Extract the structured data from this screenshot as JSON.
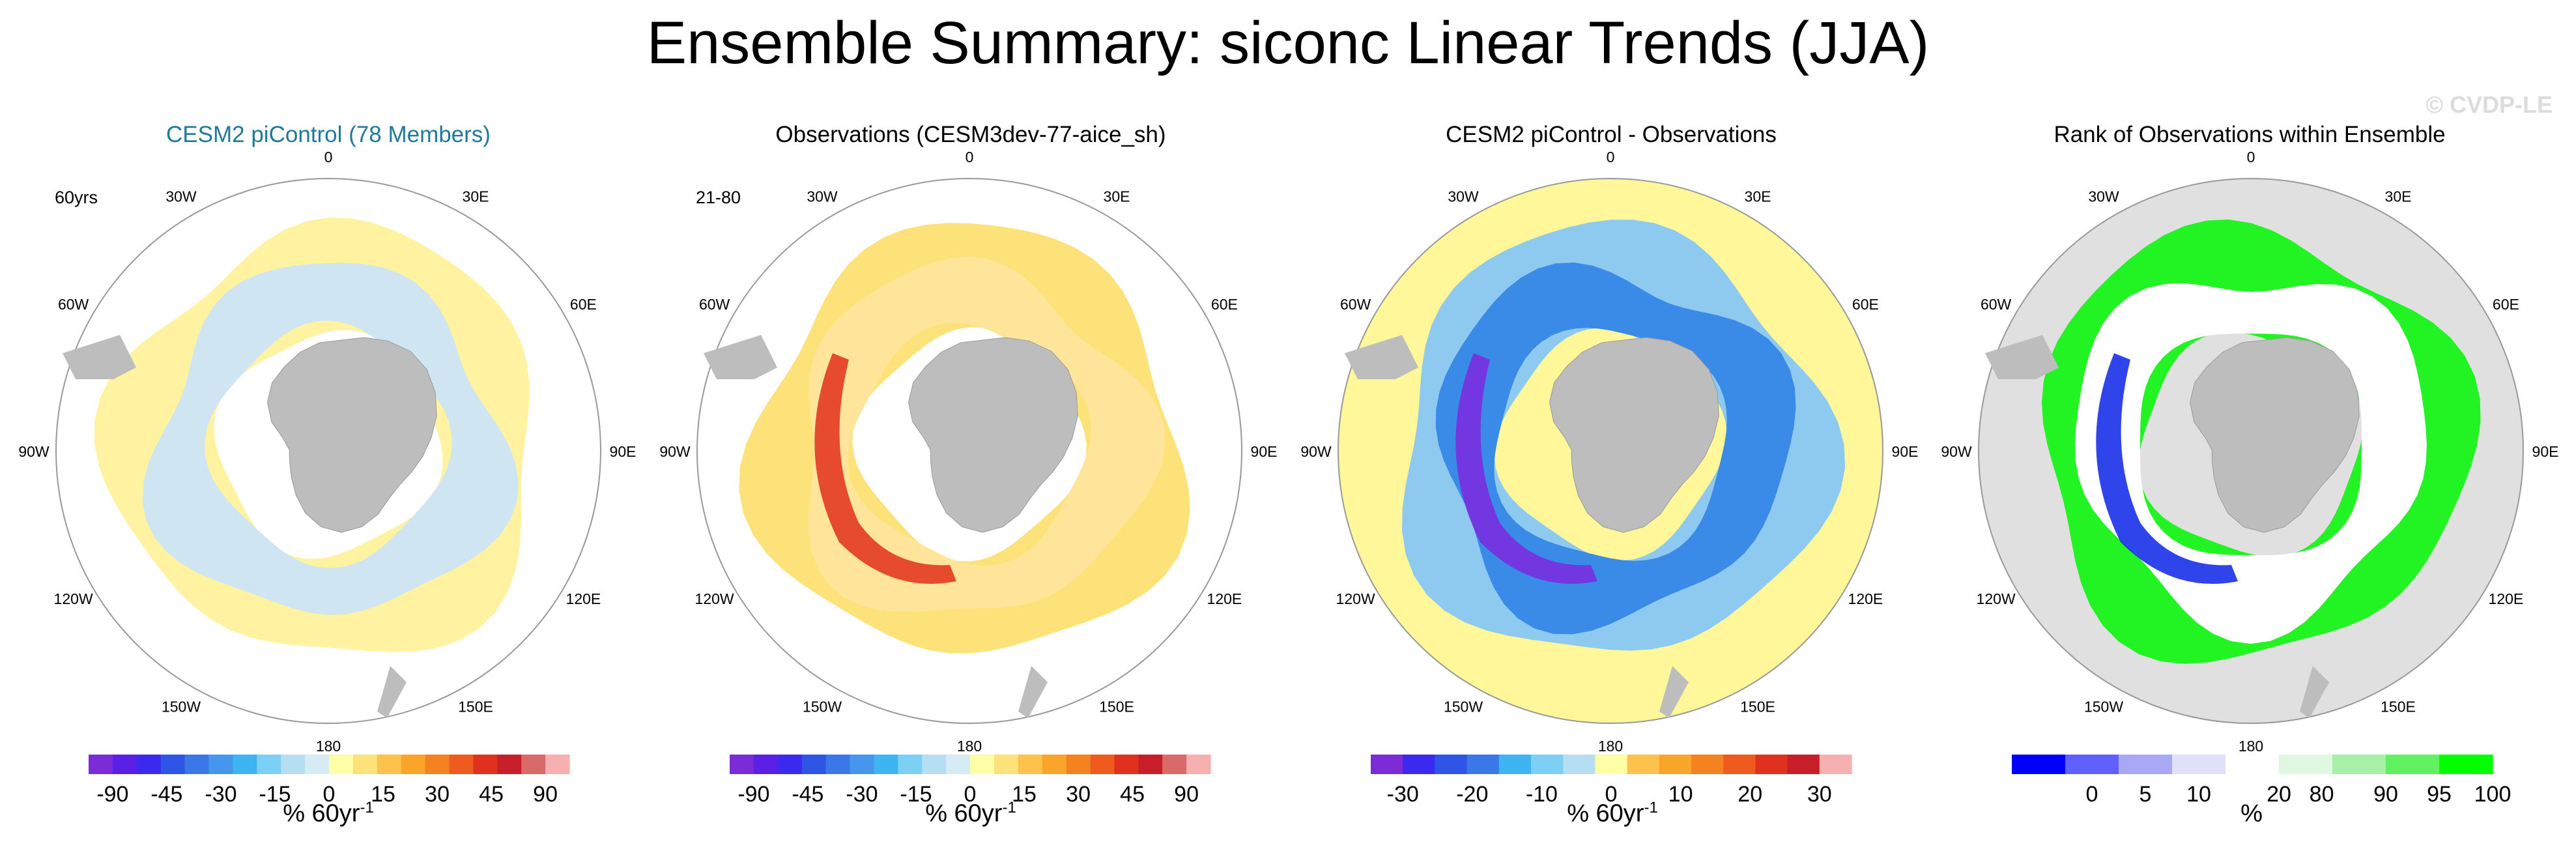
{
  "title": "Ensemble Summary: siconc Linear Trends (JJA)",
  "watermark": "© CVDP-LE",
  "colors": {
    "land": "#bdbdbd",
    "ocean_bg_obsdiff": "#fff79a",
    "rank_bg": "#e0e0e0",
    "cesm_title": "#1f7a99"
  },
  "longitude_labels": [
    "0",
    "30E",
    "60E",
    "90E",
    "120E",
    "150E",
    "180",
    "150W",
    "120W",
    "90W",
    "60W",
    "30W"
  ],
  "chart_data": [
    {
      "type": "heatmap",
      "projection": "south-polar-stereographic",
      "title": "CESM2 piControl (78 Members)",
      "corner_label": "60yrs",
      "colorbar": {
        "tick_labels": [
          "-90",
          "-45",
          "-30",
          "-15",
          "0",
          "15",
          "30",
          "45",
          "90"
        ],
        "colors": [
          "#7b2cd6",
          "#5a20e6",
          "#3a2af0",
          "#2f55e6",
          "#3a78e8",
          "#4696ee",
          "#3fb4f2",
          "#7ccff5",
          "#b5def2",
          "#d6ecf5",
          "#ffffa6",
          "#fde27a",
          "#fcc24d",
          "#f9a52a",
          "#f58220",
          "#ef5a1f",
          "#e0301e",
          "#c81e2a",
          "#d96a6a",
          "#f6b0b0"
        ],
        "units": "% 60yr",
        "units_sup": "-1"
      },
      "dominant_values": {
        "main_pack": "light blue (-15 to 0)",
        "outer_ring": "light yellow (0 to 15)"
      }
    },
    {
      "type": "heatmap",
      "projection": "south-polar-stereographic",
      "title": "Observations (CESM3dev-77-aice_sh)",
      "corner_label": "21-80",
      "colorbar": {
        "tick_labels": [
          "-90",
          "-45",
          "-30",
          "-15",
          "0",
          "15",
          "30",
          "45",
          "90"
        ],
        "colors": [
          "#7b2cd6",
          "#5a20e6",
          "#3a2af0",
          "#2f55e6",
          "#3a78e8",
          "#4696ee",
          "#3fb4f2",
          "#7ccff5",
          "#b5def2",
          "#d6ecf5",
          "#ffffa6",
          "#fde27a",
          "#fcc24d",
          "#f9a52a",
          "#f58220",
          "#ef5a1f",
          "#e0301e",
          "#c81e2a",
          "#d96a6a",
          "#f6b0b0"
        ],
        "units": "% 60yr",
        "units_sup": "-1"
      },
      "dominant_values": {
        "bellingshausen": "red/pink (45 to 90)",
        "ring": "yellow-orange (0 to 30)"
      }
    },
    {
      "type": "heatmap",
      "projection": "south-polar-stereographic",
      "title": "CESM2 piControl - Observations",
      "corner_label": "",
      "colorbar": {
        "tick_labels": [
          "-30",
          "-20",
          "-10",
          "0",
          "10",
          "20",
          "30"
        ],
        "colors": [
          "#7b2cd6",
          "#3a2af0",
          "#2f55e6",
          "#3a78e8",
          "#3fb4f2",
          "#7ccff5",
          "#b5def2",
          "#ffffa6",
          "#fcc24d",
          "#f9a52a",
          "#f58220",
          "#ef5a1f",
          "#e0301e",
          "#c81e2a",
          "#f6b0b0"
        ],
        "units": "% 60yr",
        "units_sup": "-1"
      },
      "dominant_values": {
        "bellingshausen": "purple (< -30)",
        "ring": "blue (-20 to -5)"
      }
    },
    {
      "type": "heatmap",
      "projection": "south-polar-stereographic",
      "title": "Rank of Observations within Ensemble",
      "corner_label": "",
      "colorbar": {
        "tick_labels": [
          "0",
          "5",
          "10",
          "20",
          "80",
          "90",
          "95",
          "100"
        ],
        "colors": [
          "#0000ff",
          "#6060ff",
          "#a8a8f5",
          "#e0e0f8",
          "#ffffff",
          "#e0f8e0",
          "#a8f0a8",
          "#60f060",
          "#00ff00"
        ],
        "units": "%",
        "units_sup": ""
      },
      "dominant_values": {
        "most_ice": "green (>95)",
        "patches": "white/blue"
      }
    }
  ]
}
